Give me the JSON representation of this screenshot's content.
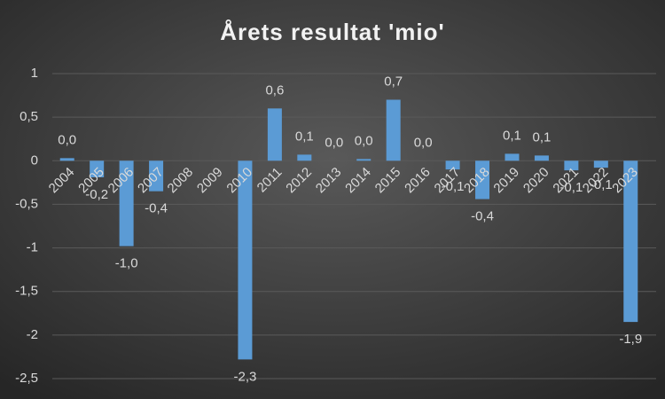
{
  "chart_data": {
    "type": "bar",
    "title": "Årets resultat 'mio'",
    "categories": [
      "2004",
      "2005",
      "2006",
      "2007",
      "2008",
      "2009",
      "2010",
      "2011",
      "2012",
      "2013",
      "2014",
      "2015",
      "2016",
      "2017",
      "2018",
      "2019",
      "2020",
      "2021",
      "2022",
      "2023"
    ],
    "values": [
      0.03,
      -0.19,
      -0.98,
      -0.35,
      null,
      null,
      -2.28,
      0.6,
      0.07,
      0,
      0.02,
      0.7,
      0,
      -0.1,
      -0.44,
      0.08,
      0.06,
      -0.11,
      -0.08,
      -1.85
    ],
    "value_labels": [
      "0,0",
      "-0,2",
      "-1,0",
      "-0,4",
      null,
      null,
      "-2,3",
      "0,6",
      "0,1",
      "0,0",
      "0,0",
      "0,7",
      "0,0",
      "-0,1",
      "-0,4",
      "0,1",
      "0,1",
      "-0,1",
      "-0,1",
      "-1,9"
    ],
    "color": "#5b9bd5",
    "ylim": [
      -2.5,
      1
    ],
    "yticks": [
      1,
      {
        "value": 0.5,
        "label": "0,5"
      },
      0,
      {
        "value": -0.5,
        "label": "-0,5"
      },
      -1,
      {
        "value": -1.5,
        "label": "-1,5"
      },
      -2,
      {
        "value": -2.5,
        "label": "-2,5"
      }
    ],
    "grid": true
  }
}
